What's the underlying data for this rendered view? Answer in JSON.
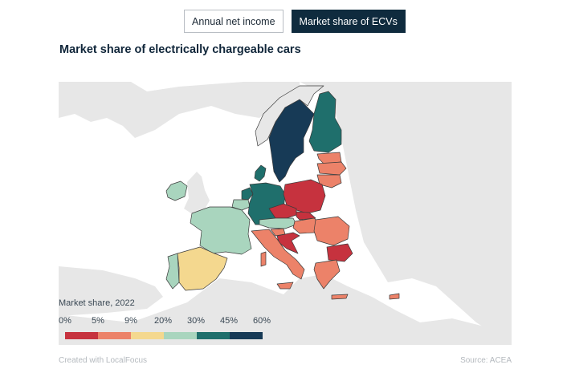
{
  "toggles": [
    {
      "label": "Annual net income",
      "active": false
    },
    {
      "label": "Market share of ECVs",
      "active": true
    }
  ],
  "title": "Market share of electrically chargeable cars",
  "legend": {
    "title": "Market share, 2022",
    "ticks": [
      "0%",
      "5%",
      "9%",
      "20%",
      "30%",
      "45%",
      "60%"
    ],
    "colors": [
      "#c6323e",
      "#ec8269",
      "#f4d88f",
      "#a9d5be",
      "#1f6f6c",
      "#173a56"
    ]
  },
  "map": {
    "land_color": "#e7e7e7",
    "border_color": "#3b3b3b",
    "country_classes": {
      "Sweden": 5,
      "Finland": 4,
      "Denmark": 4,
      "Netherlands": 4,
      "Germany": 4,
      "Ireland": 3,
      "France": 3,
      "Austria": 3,
      "Belgium": 3,
      "Portugal": 3,
      "Spain": 2,
      "Italy": 1,
      "Slovenia": 1,
      "Greece": 1,
      "Romania": 1,
      "Hungary": 1,
      "Lithuania": 1,
      "Latvia": 1,
      "Estonia": 1,
      "Bulgaria": 0,
      "Poland": 0,
      "Czechia": 0,
      "Slovakia": 0,
      "Croatia": 0
    }
  },
  "footer": {
    "credit": "Created with LocalFocus",
    "source": "Source: ACEA"
  }
}
